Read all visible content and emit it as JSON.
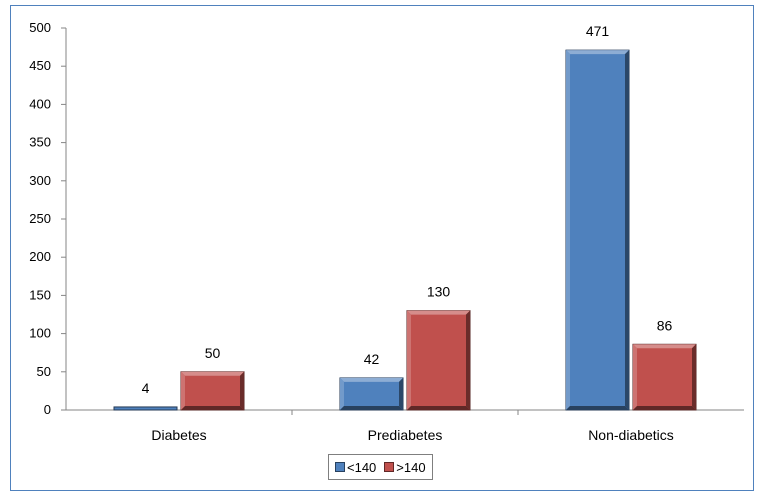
{
  "chart_data": {
    "type": "bar",
    "categories": [
      "Diabetes",
      "Prediabetes",
      "Non-diabetics"
    ],
    "series": [
      {
        "name": "<140",
        "values": [
          4,
          42,
          471
        ],
        "color": "#4f81bd"
      },
      {
        "name": ">140",
        "values": [
          50,
          130,
          86
        ],
        "color": "#c0504d"
      }
    ],
    "ylim": [
      0,
      500
    ],
    "yticks": [
      0,
      50,
      100,
      150,
      200,
      250,
      300,
      350,
      400,
      450,
      500
    ],
    "grid": false,
    "legend_position": "bottom",
    "title": "",
    "xlabel": "",
    "ylabel": ""
  }
}
